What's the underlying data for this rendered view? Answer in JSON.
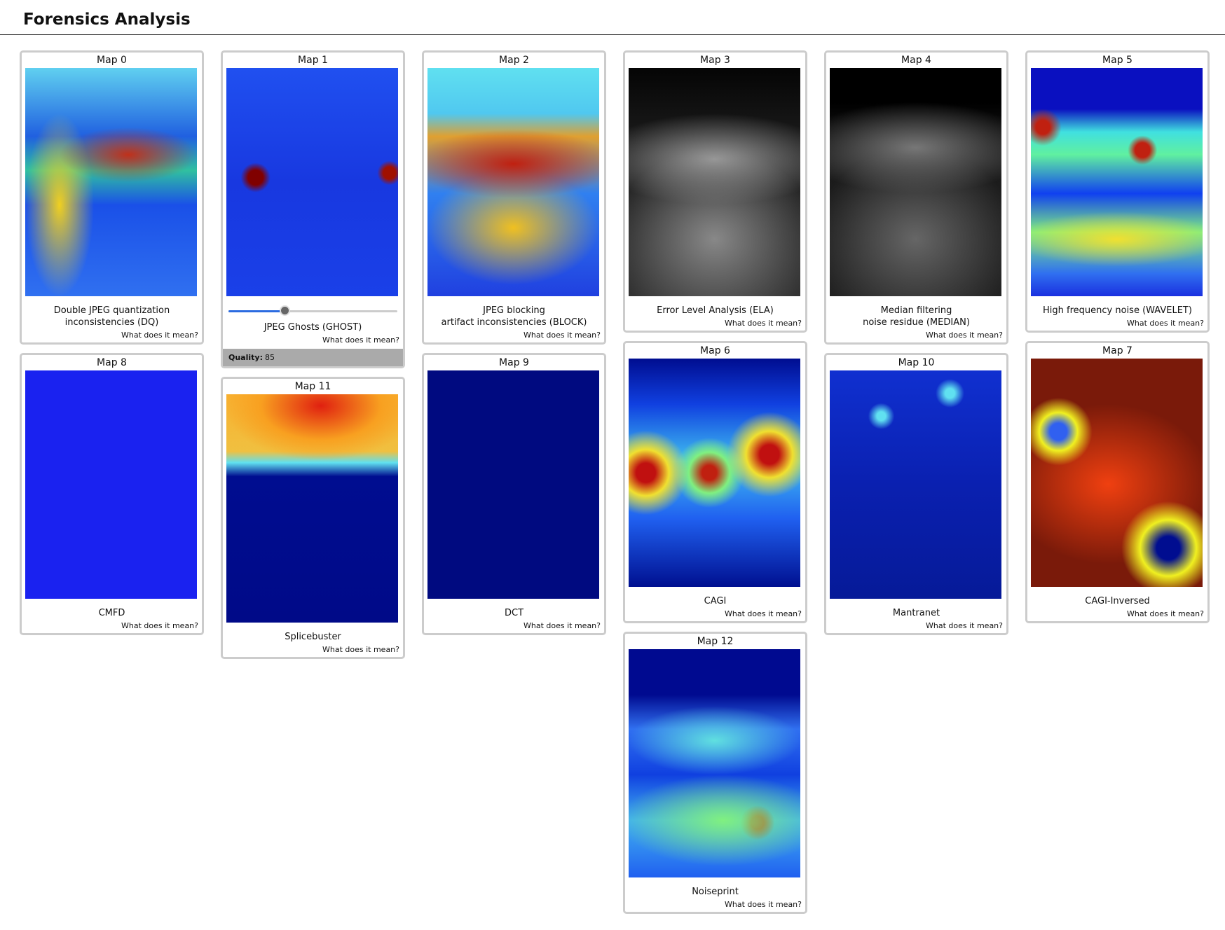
{
  "header": {
    "title": "Forensics Analysis"
  },
  "columns": [
    [
      {
        "title": "Map 0",
        "caption": [
          "Double JPEG quantization",
          "inconsistencies (DQ)"
        ],
        "help": "What does it mean?"
      },
      {
        "title": "Map 8",
        "caption": [
          "CMFD"
        ],
        "help": "What does it mean?"
      }
    ],
    [
      {
        "title": "Map 1",
        "caption": [
          "JPEG Ghosts (GHOST)"
        ],
        "help": "What does it mean?",
        "quality_label": "Quality:",
        "quality": 85
      },
      {
        "title": "Map 11",
        "caption": [
          "Splicebuster"
        ],
        "help": "What does it mean?"
      }
    ],
    [
      {
        "title": "Map 2",
        "caption": [
          "JPEG blocking",
          "artifact inconsistencies (BLOCK)"
        ],
        "help": "What does it mean?"
      },
      {
        "title": "Map 9",
        "caption": [
          "DCT"
        ],
        "help": "What does it mean?"
      }
    ],
    [
      {
        "title": "Map 3",
        "caption": [
          "Error Level Analysis (ELA)"
        ],
        "help": "What does it mean?"
      },
      {
        "title": "Map 6",
        "caption": [
          "CAGI"
        ],
        "help": "What does it mean?"
      },
      {
        "title": "Map 12",
        "caption": [
          "Noiseprint"
        ],
        "help": "What does it mean?"
      }
    ],
    [
      {
        "title": "Map 4",
        "caption": [
          "Median filtering",
          "noise residue (MEDIAN)"
        ],
        "help": "What does it mean?"
      },
      {
        "title": "Map 10",
        "caption": [
          "Mantranet"
        ],
        "help": "What does it mean?"
      }
    ],
    [
      {
        "title": "Map 5",
        "caption": [
          "High frequency noise (WAVELET)"
        ],
        "help": "What does it mean?"
      },
      {
        "title": "Map 7",
        "caption": [
          "CAGI-Inversed"
        ],
        "help": "What does it mean?"
      }
    ]
  ]
}
